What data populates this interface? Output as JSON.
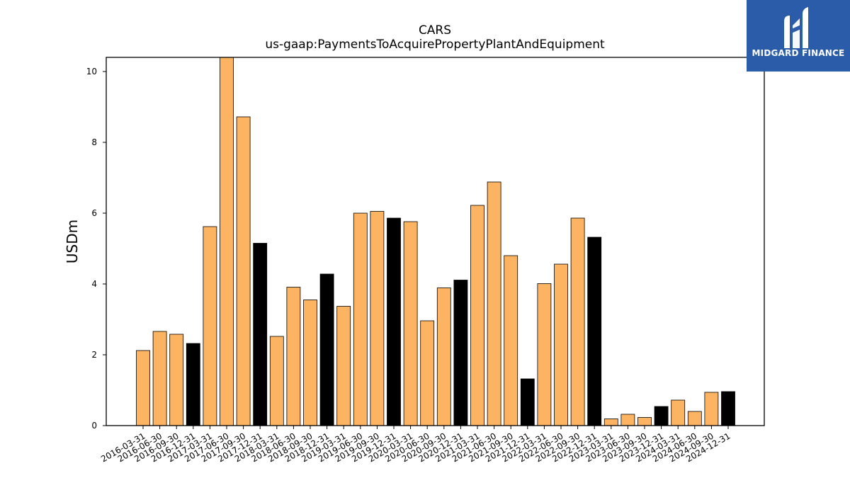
{
  "chart_data": {
    "type": "bar",
    "title": "CARS",
    "subtitle": "us-gaap:PaymentsToAcquirePropertyPlantAndEquipment",
    "xlabel": "",
    "ylabel": "USDm",
    "ylim": [
      0,
      10.4
    ],
    "yticks": [
      0,
      2,
      4,
      6,
      8,
      10
    ],
    "grid": false,
    "categories": [
      "2016-03-31",
      "2016-06-30",
      "2016-09-30",
      "2016-12-31",
      "2017-03-31",
      "2017-06-30",
      "2017-09-30",
      "2017-12-31",
      "2018-03-31",
      "2018-06-30",
      "2018-09-30",
      "2018-12-31",
      "2019-03-31",
      "2019-06-30",
      "2019-09-30",
      "2019-12-31",
      "2020-03-31",
      "2020-06-30",
      "2020-09-30",
      "2020-12-31",
      "2021-03-31",
      "2021-06-30",
      "2021-09-30",
      "2021-12-31",
      "2022-03-31",
      "2022-06-30",
      "2022-09-30",
      "2022-12-31",
      "2023-03-31",
      "2023-06-30",
      "2023-09-30",
      "2023-12-31",
      "2024-03-31",
      "2024-06-30",
      "2024-09-30",
      "2024-12-31"
    ],
    "values": [
      2.12,
      2.66,
      2.58,
      2.32,
      5.62,
      10.5,
      8.72,
      5.15,
      2.52,
      3.91,
      3.55,
      4.28,
      3.37,
      6.0,
      6.05,
      5.86,
      5.76,
      2.96,
      3.89,
      4.11,
      6.22,
      6.88,
      4.8,
      1.32,
      4.01,
      4.56,
      5.86,
      5.32,
      0.19,
      0.32,
      0.23,
      0.54,
      0.72,
      0.4,
      0.94,
      0.96
    ],
    "colors": {
      "quarter": "#fdb462",
      "year_end": "#000000",
      "edge": "#000000"
    },
    "highlight_rule": "December 31 bars drawn in black"
  },
  "logo": {
    "text": "MIDGARD FINANCE",
    "background": "#2a5caa",
    "icon": "midgard-logo-icon"
  }
}
